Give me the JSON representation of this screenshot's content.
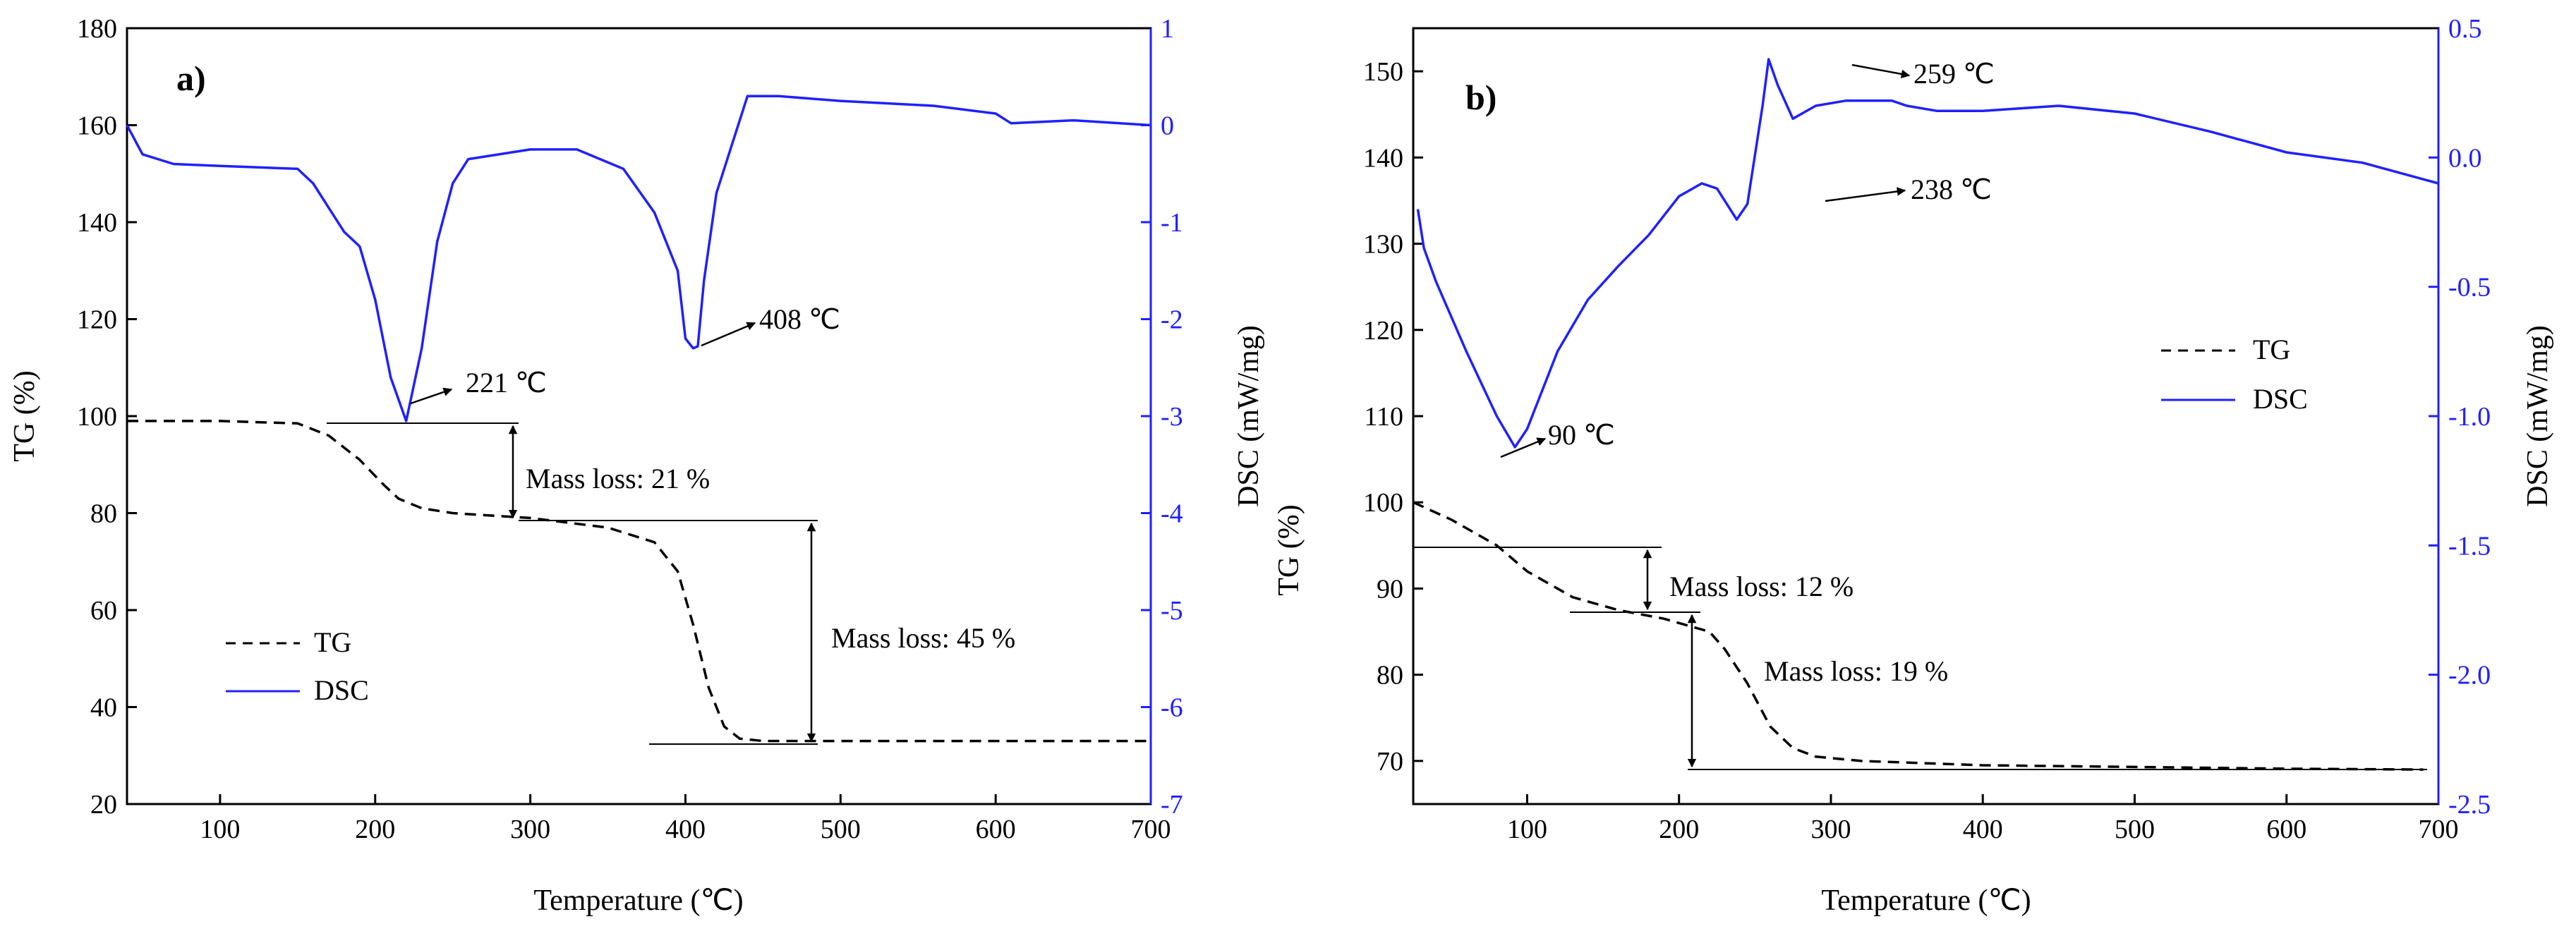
{
  "colors": {
    "tg": "#000000",
    "dsc": "#2020ff",
    "axis": "#000000",
    "dsc_axis": "#2020ff"
  },
  "chart_data": [
    {
      "type": "line",
      "panel_label": "a)",
      "xlabel": "Temperature (℃)",
      "ylabel_left": "TG (%)",
      "ylabel_right": "DSC (mW/mg)",
      "xlim": [
        40,
        700
      ],
      "ylim_left": [
        20,
        180
      ],
      "ylim_right": [
        -7,
        1
      ],
      "x_ticks": [
        100,
        200,
        300,
        400,
        500,
        600,
        700
      ],
      "y_left_ticks": [
        20,
        40,
        60,
        80,
        100,
        120,
        140,
        160,
        180
      ],
      "y_right_ticks": [
        1,
        0,
        -1,
        -2,
        -3,
        -4,
        -5,
        -6,
        -7
      ],
      "legend": [
        "TG",
        "DSC"
      ],
      "series": [
        {
          "name": "TG",
          "axis": "left",
          "style": "dashed",
          "x": [
            40,
            100,
            150,
            170,
            190,
            205,
            215,
            230,
            250,
            300,
            350,
            380,
            395,
            405,
            415,
            425,
            435,
            450,
            500,
            600,
            700
          ],
          "y": [
            99,
            99,
            98.5,
            96,
            91,
            86,
            83,
            81,
            80,
            79,
            77,
            74,
            68,
            57,
            44,
            36,
            33.5,
            33,
            33,
            33,
            33
          ]
        },
        {
          "name": "DSC",
          "axis": "right",
          "style": "solid",
          "x": [
            40,
            50,
            70,
            100,
            150,
            160,
            170,
            180,
            190,
            200,
            210,
            220,
            230,
            240,
            250,
            260,
            300,
            330,
            360,
            380,
            395,
            400,
            405,
            408,
            412,
            420,
            430,
            440,
            460,
            500,
            560,
            600,
            610,
            650,
            700
          ],
          "y": [
            0,
            -0.3,
            -0.4,
            -0.42,
            -0.45,
            -0.6,
            -0.85,
            -1.1,
            -1.25,
            -1.8,
            -2.6,
            -3.05,
            -2.3,
            -1.2,
            -0.6,
            -0.35,
            -0.25,
            -0.25,
            -0.45,
            -0.9,
            -1.5,
            -2.2,
            -2.3,
            -2.28,
            -1.6,
            -0.7,
            -0.2,
            0.3,
            0.3,
            0.25,
            0.2,
            0.12,
            0.02,
            0.05,
            0.0
          ]
        }
      ],
      "annotations": [
        {
          "text": "221 ℃"
        },
        {
          "text": "408 ℃"
        },
        {
          "text": "Mass loss: 21 %"
        },
        {
          "text": "Mass loss: 45 %"
        }
      ]
    },
    {
      "type": "line",
      "panel_label": "b)",
      "xlabel": "Temperature (℃)",
      "ylabel_left": "TG (%)",
      "ylabel_right": "DSC (mW/mg)",
      "xlim": [
        25,
        700
      ],
      "ylim_left": [
        65,
        155
      ],
      "ylim_right": [
        -2.5,
        0.5
      ],
      "x_ticks": [
        100,
        200,
        300,
        400,
        500,
        600,
        700
      ],
      "y_left_ticks": [
        70,
        80,
        90,
        100,
        110,
        120,
        130,
        140,
        150
      ],
      "y_right_ticks": [
        0.5,
        0.0,
        -0.5,
        -1.0,
        -1.5,
        -2.0,
        -2.5
      ],
      "y_right_tick_labels": [
        "0.5",
        "0.0",
        "-0.5",
        "-1.0",
        "-1.5",
        "-2.0",
        "-2.5"
      ],
      "legend": [
        "TG",
        "DSC"
      ],
      "series": [
        {
          "name": "TG",
          "axis": "left",
          "style": "dashed",
          "x": [
            25,
            50,
            80,
            100,
            130,
            160,
            190,
            220,
            230,
            245,
            260,
            275,
            290,
            320,
            400,
            500,
            600,
            690
          ],
          "y": [
            100,
            98,
            95,
            92,
            89,
            87.5,
            86.5,
            85,
            83,
            79,
            74,
            71.5,
            70.5,
            70,
            69.5,
            69.3,
            69.1,
            69
          ]
        },
        {
          "name": "DSC",
          "axis": "right",
          "style": "solid",
          "x": [
            28,
            32,
            40,
            60,
            80,
            92,
            100,
            120,
            140,
            160,
            180,
            200,
            215,
            225,
            238,
            245,
            255,
            259,
            265,
            275,
            290,
            310,
            340,
            350,
            370,
            400,
            450,
            500,
            550,
            600,
            650,
            700
          ],
          "y": [
            -0.2,
            -0.35,
            -0.48,
            -0.75,
            -1.0,
            -1.12,
            -1.05,
            -0.75,
            -0.55,
            -0.42,
            -0.3,
            -0.15,
            -0.1,
            -0.12,
            -0.24,
            -0.18,
            0.2,
            0.38,
            0.28,
            0.15,
            0.2,
            0.22,
            0.22,
            0.2,
            0.18,
            0.18,
            0.2,
            0.17,
            0.1,
            0.02,
            -0.02,
            -0.1
          ]
        }
      ],
      "annotations": [
        {
          "text": "259 ℃"
        },
        {
          "text": "238 ℃"
        },
        {
          "text": "90 ℃"
        },
        {
          "text": "Mass loss: 12 %"
        },
        {
          "text": "Mass loss: 19 %"
        }
      ]
    }
  ]
}
